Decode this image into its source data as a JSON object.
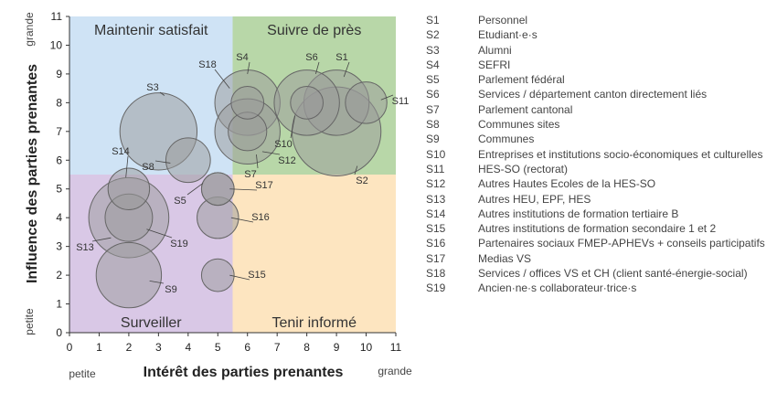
{
  "chart_data": {
    "type": "bubble",
    "xlabel": "Intérêt des parties prenantes",
    "ylabel": "Influence des parties prenantes",
    "x_low_label": "petite",
    "x_high_label": "grande",
    "y_low_label": "petite",
    "y_high_label": "grande",
    "xlim": [
      0,
      11
    ],
    "ylim": [
      0,
      11
    ],
    "xticks": [
      "0",
      "1",
      "2",
      "3",
      "4",
      "5",
      "6",
      "7",
      "8",
      "9",
      "10",
      "11"
    ],
    "yticks": [
      "0",
      "1",
      "2",
      "3",
      "4",
      "5",
      "6",
      "7",
      "8",
      "9",
      "10",
      "11"
    ],
    "quadrant_split": {
      "x": 5.5,
      "y": 5.5
    },
    "quadrants": [
      {
        "label": "Maintenir satisfait",
        "color": "#cfe3f5"
      },
      {
        "label": "Suivre de près",
        "color": "#b8d7a8"
      },
      {
        "label": "Surveiller",
        "color": "#d9c8e6"
      },
      {
        "label": "Tenir informé",
        "color": "#fde5c0"
      }
    ],
    "bubble_color": "#999999",
    "points": [
      {
        "id": "S1",
        "x": 9,
        "y": 8,
        "r": 1.1
      },
      {
        "id": "S2",
        "x": 9,
        "y": 7,
        "r": 1.5
      },
      {
        "id": "S3",
        "x": 3,
        "y": 7,
        "r": 1.3
      },
      {
        "id": "S4",
        "x": 6,
        "y": 8,
        "r": 1.1
      },
      {
        "id": "S5",
        "x": 5,
        "y": 5,
        "r": 0.55
      },
      {
        "id": "S6",
        "x": 8,
        "y": 8,
        "r": 1.1
      },
      {
        "id": "S7",
        "x": 6,
        "y": 7,
        "r": 1.1
      },
      {
        "id": "S8",
        "x": 4,
        "y": 6,
        "r": 0.75
      },
      {
        "id": "S9",
        "x": 2,
        "y": 2,
        "r": 1.1
      },
      {
        "id": "S10",
        "x": 8,
        "y": 8,
        "r": 0.55
      },
      {
        "id": "S11",
        "x": 10,
        "y": 8,
        "r": 0.7
      },
      {
        "id": "S12",
        "x": 6,
        "y": 7,
        "r": 0.65
      },
      {
        "id": "S13",
        "x": 2,
        "y": 4,
        "r": 1.35
      },
      {
        "id": "S14",
        "x": 2,
        "y": 5,
        "r": 0.7
      },
      {
        "id": "S15",
        "x": 5,
        "y": 2,
        "r": 0.55
      },
      {
        "id": "S16",
        "x": 5,
        "y": 4,
        "r": 0.7
      },
      {
        "id": "S17",
        "x": 5,
        "y": 5,
        "r": 0.55
      },
      {
        "id": "S18",
        "x": 6,
        "y": 8,
        "r": 0.55
      },
      {
        "id": "S19",
        "x": 2,
        "y": 4,
        "r": 0.8
      }
    ],
    "legend_position": "right",
    "legend": [
      {
        "code": "S1",
        "label": "Personnel"
      },
      {
        "code": "S2",
        "label": "Etudiant·e·s"
      },
      {
        "code": "S3",
        "label": "Alumni"
      },
      {
        "code": "S4",
        "label": "SEFRI"
      },
      {
        "code": "S5",
        "label": "Parlement fédéral"
      },
      {
        "code": "S6",
        "label": "Services / département canton directement liés"
      },
      {
        "code": "S7",
        "label": "Parlement cantonal"
      },
      {
        "code": "S8",
        "label": "Communes sites"
      },
      {
        "code": "S9",
        "label": "Communes"
      },
      {
        "code": "S10",
        "label": "Entreprises et institutions socio-économiques et culturelles"
      },
      {
        "code": "S11",
        "label": "HES-SO (rectorat)"
      },
      {
        "code": "S12",
        "label": "Autres Hautes Ecoles de la HES-SO"
      },
      {
        "code": "S13",
        "label": "Autres HEU, EPF, HES"
      },
      {
        "code": "S14",
        "label": "Autres institutions de formation tertiaire B"
      },
      {
        "code": "S15",
        "label": "Autres institutions de formation secondaire 1 et 2"
      },
      {
        "code": "S16",
        "label": "Partenaires sociaux FMEP-APHEVs + conseils participatifs"
      },
      {
        "code": "S17",
        "label": "Medias VS"
      },
      {
        "code": "S18",
        "label": "Services / offices VS et CH (client santé-énergie-social)"
      },
      {
        "code": "S19",
        "label": "Ancien·ne·s collaborateur·trice·s"
      }
    ]
  }
}
